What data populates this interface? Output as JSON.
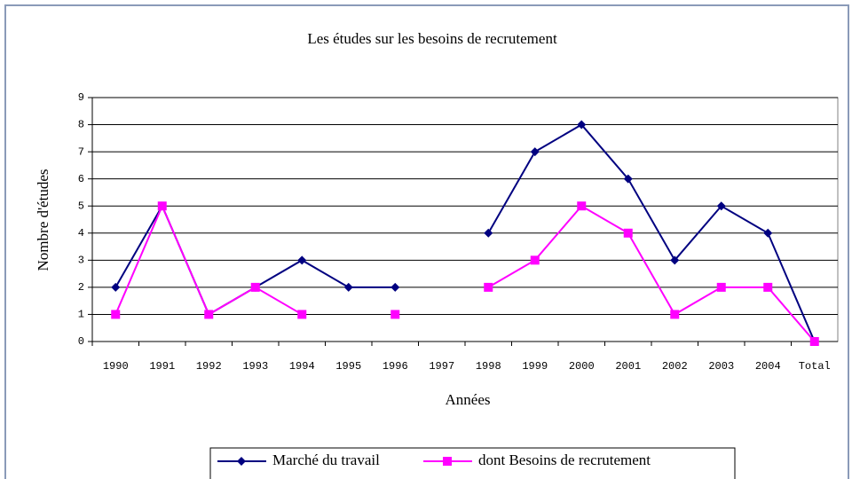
{
  "chart_data": {
    "type": "line",
    "title": "Les études sur les besoins de recrutement",
    "x_label": "Années",
    "y_label": "Nombre d'études",
    "categories": [
      "1990",
      "1991",
      "1992",
      "1993",
      "1994",
      "1995",
      "1996",
      "1997",
      "1998",
      "1999",
      "2000",
      "2001",
      "2002",
      "2003",
      "2004",
      "Total"
    ],
    "series": [
      {
        "name": "Marché du travail",
        "color": "#000080",
        "marker": "diamond",
        "values": [
          2,
          5,
          1,
          2,
          3,
          2,
          2,
          null,
          4,
          7,
          8,
          6,
          3,
          5,
          4,
          0
        ]
      },
      {
        "name": "dont Besoins de recrutement",
        "color": "#ff00ff",
        "marker": "square",
        "values": [
          1,
          5,
          1,
          2,
          1,
          null,
          1,
          null,
          2,
          3,
          5,
          4,
          1,
          2,
          2,
          0
        ]
      }
    ],
    "ylim": [
      0,
      9
    ],
    "yticks": [
      0,
      1,
      2,
      3,
      4,
      5,
      6,
      7,
      8,
      9
    ],
    "grid": true,
    "legend": "bottom"
  }
}
